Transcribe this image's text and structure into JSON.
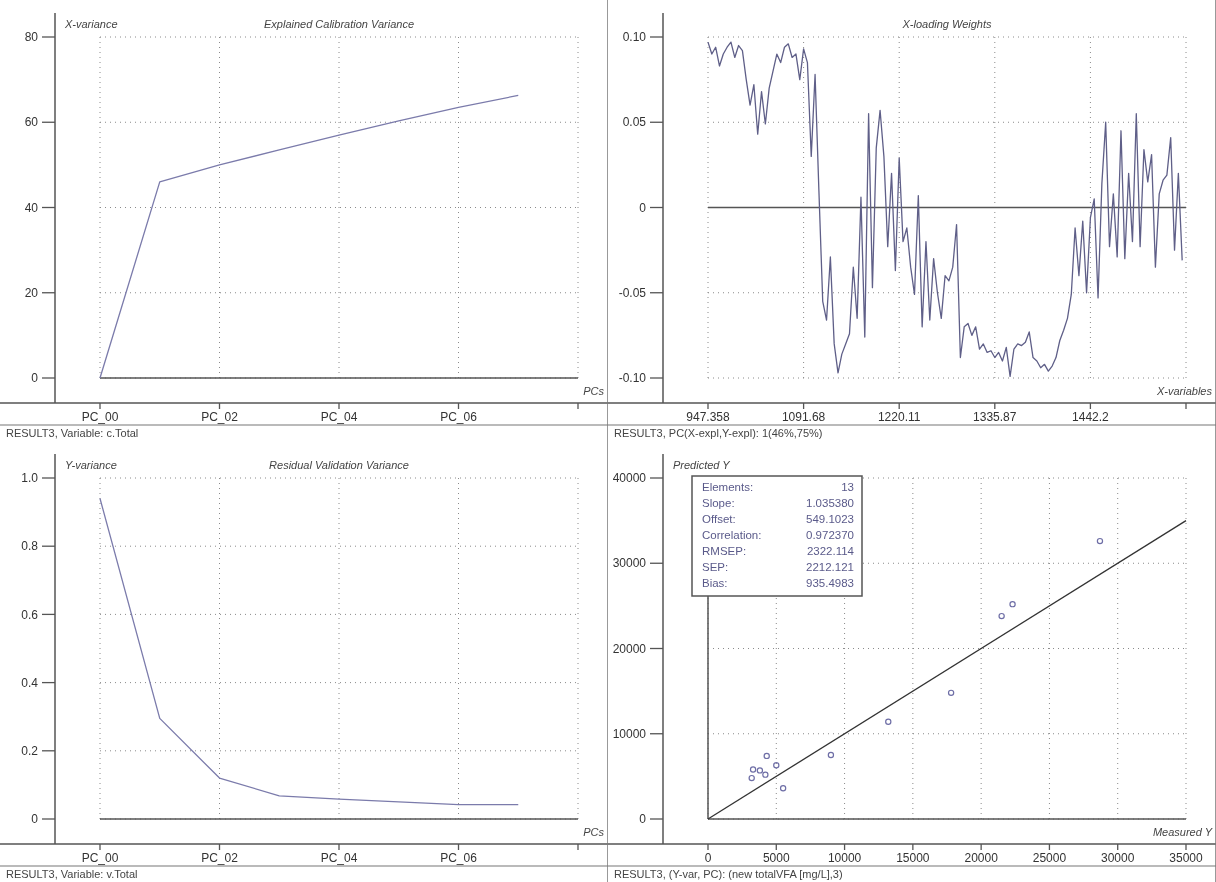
{
  "chart_data": [
    {
      "type": "line",
      "title": "Explained Calibration Variance",
      "ylabel": "X-variance",
      "xlabel": "PCs",
      "x": [
        0,
        1,
        2,
        3,
        4,
        5,
        6,
        7
      ],
      "values": [
        0,
        46,
        50,
        53.5,
        57,
        60.3,
        63.5,
        66.3
      ],
      "color": "#7b7bab",
      "xlim": [
        0,
        8
      ],
      "xticks": [
        {
          "value": 0,
          "label": "PC_00"
        },
        {
          "value": 2,
          "label": "PC_02"
        },
        {
          "value": 4,
          "label": "PC_04"
        },
        {
          "value": 6,
          "label": "PC_06"
        },
        {
          "value": 8,
          "label": null
        }
      ],
      "ylim": [
        0,
        80
      ],
      "yticks": [
        0,
        20,
        40,
        60,
        80
      ],
      "grid": true,
      "ref_lines": [
        {
          "axis": "y",
          "value": 0,
          "color": "#555555"
        }
      ],
      "annotations": [
        "RESULT3, Variable: c.Total"
      ]
    },
    {
      "type": "line",
      "title": "X-loading Weights",
      "xlabel": "X-variables",
      "categories": [
        "947.358",
        null,
        null,
        null,
        null,
        null,
        null,
        null,
        null,
        null,
        null,
        null,
        null,
        null,
        null,
        null,
        null,
        null,
        null,
        null,
        null,
        null,
        null,
        null,
        null,
        "1091.68",
        null,
        null,
        null,
        null,
        null,
        null,
        null,
        null,
        null,
        null,
        null,
        null,
        null,
        null,
        null,
        null,
        null,
        null,
        null,
        null,
        null,
        null,
        null,
        null,
        "1220.11",
        null,
        null,
        null,
        null,
        null,
        null,
        null,
        null,
        null,
        null,
        null,
        null,
        null,
        null,
        null,
        null,
        null,
        null,
        null,
        null,
        null,
        null,
        null,
        null,
        "1335.87",
        null,
        null,
        null,
        null,
        null,
        null,
        null,
        null,
        null,
        null,
        null,
        null,
        null,
        null,
        null,
        null,
        null,
        null,
        null,
        null,
        null,
        null,
        null,
        null,
        "1442.2",
        null,
        null,
        null,
        null,
        null,
        null,
        null,
        null,
        null,
        null,
        null,
        null,
        null,
        null,
        null,
        null,
        null,
        null,
        null,
        null,
        null,
        null,
        null,
        null,
        null
      ],
      "values": [
        0.097,
        0.09,
        0.094,
        0.083,
        0.09,
        0.094,
        0.097,
        0.088,
        0.095,
        0.092,
        0.075,
        0.06,
        0.072,
        0.043,
        0.068,
        0.049,
        0.07,
        0.08,
        0.09,
        0.085,
        0.094,
        0.096,
        0.088,
        0.09,
        0.075,
        0.093,
        0.085,
        0.03,
        0.078,
        0.01,
        -0.055,
        -0.066,
        -0.029,
        -0.08,
        -0.097,
        -0.086,
        -0.08,
        -0.074,
        -0.035,
        -0.065,
        0.006,
        -0.076,
        0.055,
        -0.047,
        0.035,
        0.057,
        0.03,
        -0.023,
        0.02,
        -0.037,
        0.029,
        -0.02,
        -0.012,
        -0.035,
        -0.051,
        0.007,
        -0.07,
        -0.02,
        -0.066,
        -0.03,
        -0.05,
        -0.065,
        -0.04,
        -0.043,
        -0.035,
        -0.01,
        -0.088,
        -0.07,
        -0.068,
        -0.075,
        -0.07,
        -0.083,
        -0.08,
        -0.085,
        -0.084,
        -0.088,
        -0.085,
        -0.09,
        -0.082,
        -0.099,
        -0.083,
        -0.08,
        -0.081,
        -0.079,
        -0.073,
        -0.088,
        -0.09,
        -0.094,
        -0.092,
        -0.096,
        -0.093,
        -0.088,
        -0.078,
        -0.072,
        -0.065,
        -0.051,
        -0.012,
        -0.04,
        -0.008,
        -0.05,
        -0.006,
        0.005,
        -0.053,
        0.014,
        0.05,
        -0.023,
        0.008,
        -0.029,
        0.045,
        -0.03,
        0.02,
        -0.02,
        0.055,
        -0.023,
        0.034,
        0.015,
        0.031,
        -0.035,
        0.008,
        0.016,
        0.019,
        0.041,
        -0.025,
        0.02,
        -0.031,
        null
      ],
      "color": "#5f5f88",
      "ylim": [
        -0.1,
        0.1
      ],
      "yticks": [
        {
          "value": -0.1,
          "label": "-0.10"
        },
        -0.05,
        0,
        0.05,
        {
          "value": 0.1,
          "label": "0.10"
        }
      ],
      "grid": true,
      "ref_lines": [
        {
          "axis": "y",
          "value": 0,
          "color": "#555555"
        }
      ],
      "annotations": [
        "RESULT3, PC(X-expl,Y-expl): 1(46%,75%)"
      ]
    },
    {
      "type": "line",
      "title": "Residual Validation Variance",
      "ylabel": "Y-variance",
      "xlabel": "PCs",
      "x": [
        0,
        1,
        2,
        3,
        4,
        5,
        6,
        7
      ],
      "values": [
        0.94,
        0.295,
        0.12,
        0.068,
        0.058,
        0.05,
        0.042,
        0.042
      ],
      "color": "#7b7bab",
      "xlim": [
        0,
        8
      ],
      "xticks": [
        {
          "value": 0,
          "label": "PC_00"
        },
        {
          "value": 2,
          "label": "PC_02"
        },
        {
          "value": 4,
          "label": "PC_04"
        },
        {
          "value": 6,
          "label": "PC_06"
        },
        {
          "value": 8,
          "label": null
        }
      ],
      "ylim": [
        0,
        1
      ],
      "yticks": [
        0,
        0.2,
        0.4,
        0.6,
        0.8,
        {
          "value": 1,
          "label": "1.0"
        }
      ],
      "grid": true,
      "ref_lines": [
        {
          "axis": "y",
          "value": 0,
          "color": "#555555"
        }
      ],
      "annotations": [
        "RESULT3, Variable: v.Total"
      ]
    },
    {
      "type": "scatter",
      "ylabel": "Predicted Y",
      "xlabel": "Measured Y",
      "series": [
        {
          "marker": "circle",
          "color": "#6e6ea6",
          "x": [
            3200,
            3300,
            3800,
            4200,
            4300,
            5000,
            5500,
            9000,
            13200,
            17800,
            21500,
            22300,
            28700
          ],
          "values": [
            4800,
            5800,
            5700,
            5200,
            7400,
            6300,
            3600,
            7500,
            11400,
            14800,
            23800,
            25200,
            32600
          ]
        },
        {
          "type": "line",
          "color": "#333333",
          "x": [
            0,
            35000
          ],
          "values": [
            0,
            35000
          ]
        }
      ],
      "xlim": [
        0,
        35000
      ],
      "xticks": [
        0,
        5000,
        10000,
        15000,
        20000,
        25000,
        30000,
        35000
      ],
      "ylim": [
        0,
        40000
      ],
      "yticks": [
        0,
        10000,
        20000,
        30000,
        40000
      ],
      "grid": true,
      "ref_lines": [
        {
          "axis": "y",
          "value": 0,
          "color": "#555555"
        },
        {
          "axis": "x",
          "value": 0,
          "color": "#555555"
        }
      ],
      "annotations": [
        "Elements: 13",
        "Slope: 1.035380",
        "Offset: 549.1023",
        "Correlation: 0.972370",
        "RMSEP: 2322.114",
        "SEP: 2212.121",
        "Bias: 935.4983",
        "RESULT3, (Y-var, PC): (new totalVFA [mg/L],3)"
      ]
    }
  ]
}
